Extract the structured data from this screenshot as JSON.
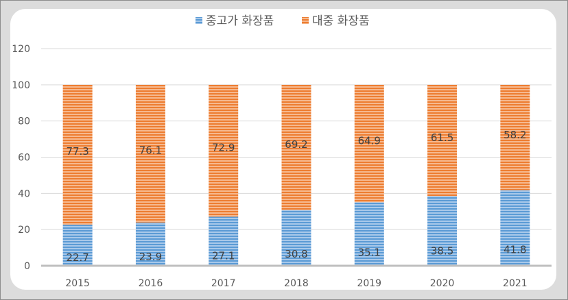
{
  "chart_data": {
    "type": "bar",
    "stacked": true,
    "categories": [
      "2015",
      "2016",
      "2017",
      "2018",
      "2019",
      "2020",
      "2021"
    ],
    "series": [
      {
        "name": "중고가 화장품",
        "color": "#5b9bd5",
        "values": [
          22.7,
          23.9,
          27.1,
          30.8,
          35.1,
          38.5,
          41.8
        ]
      },
      {
        "name": "대중 화장품",
        "color": "#ed7d31",
        "values": [
          77.3,
          76.1,
          72.9,
          69.2,
          64.9,
          61.5,
          58.2
        ]
      }
    ],
    "ylim": [
      0,
      120
    ],
    "yticks": [
      "0",
      "20",
      "40",
      "60",
      "80",
      "100",
      "120"
    ],
    "grid": true,
    "legend": "top-center",
    "title": "",
    "xlabel": "",
    "ylabel": ""
  }
}
